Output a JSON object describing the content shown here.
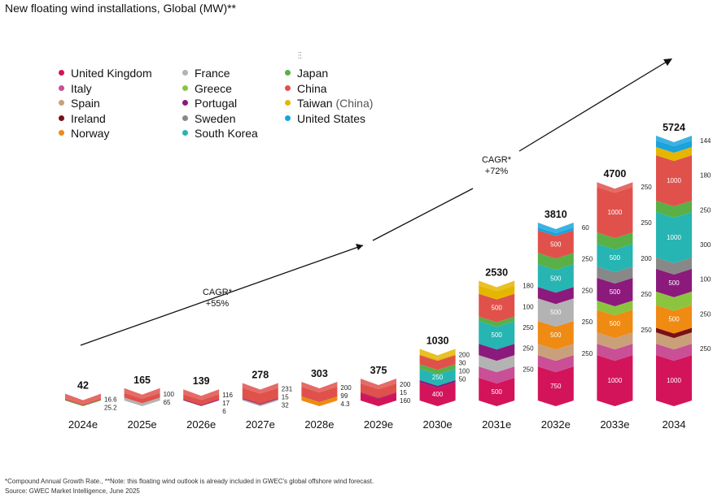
{
  "title": "New floating wind installations, Global  (MW)**",
  "legend": [
    {
      "label": "United Kingdom",
      "color": "#d3145a"
    },
    {
      "label": "Italy",
      "color": "#c94f96"
    },
    {
      "label": "Spain",
      "color": "#c9a07a"
    },
    {
      "label": "Ireland",
      "color": "#7a1016"
    },
    {
      "label": "Norway",
      "color": "#ef8a13"
    },
    {
      "label": "France",
      "color": "#b3b3b3"
    },
    {
      "label": "Greece",
      "color": "#8bc53f"
    },
    {
      "label": "Portugal",
      "color": "#8b1a7c"
    },
    {
      "label": "Sweden",
      "color": "#888888"
    },
    {
      "label": "South Korea",
      "color": "#26b5b2"
    },
    {
      "label": "Japan",
      "color": "#58b046"
    },
    {
      "label": "China",
      "color": "#e0514c"
    },
    {
      "label": "Taiwan",
      "label_suffix": "(China)",
      "color": "#e5b600"
    },
    {
      "label": "United States",
      "color": "#1aa3dd"
    }
  ],
  "cagr_labels": [
    {
      "line1": "CAGR*",
      "line2": "+55%"
    },
    {
      "line1": "CAGR*",
      "line2": "+72%"
    }
  ],
  "chart_data": {
    "type": "bar",
    "stacked": true,
    "categories": [
      "2024e",
      "2025e",
      "2026e",
      "2027e",
      "2028e",
      "2029e",
      "2030e",
      "2031e",
      "2032e",
      "2033e",
      "2034"
    ],
    "totals": [
      42,
      165,
      139,
      278,
      303,
      375,
      1030,
      2530,
      3810,
      4700,
      5724
    ],
    "ylim": [
      0,
      5724
    ],
    "series": [
      {
        "name": "United Kingdom",
        "values": [
          0,
          0,
          0,
          0,
          0,
          160,
          400,
          500,
          750,
          1000,
          1000
        ]
      },
      {
        "name": "Italy",
        "values": [
          0,
          0,
          0,
          0,
          0,
          0,
          0,
          250,
          250,
          250,
          250
        ]
      },
      {
        "name": "Spain",
        "values": [
          0,
          0,
          0,
          0,
          0,
          0,
          0,
          0,
          250,
          250,
          250
        ]
      },
      {
        "name": "Ireland",
        "values": [
          0,
          0,
          0,
          0,
          0,
          0,
          0,
          0,
          0,
          0,
          100
        ]
      },
      {
        "name": "Norway",
        "values": [
          0,
          0,
          0,
          0,
          99,
          0,
          0,
          0,
          500,
          500,
          500
        ]
      },
      {
        "name": "France",
        "values": [
          0,
          65,
          6,
          32,
          0,
          0,
          0,
          250,
          500,
          0,
          0
        ]
      },
      {
        "name": "Greece",
        "values": [
          0,
          0,
          0,
          0,
          0,
          0,
          0,
          0,
          0,
          200,
          300
        ]
      },
      {
        "name": "Portugal",
        "values": [
          0,
          0,
          17,
          15,
          4.3,
          15,
          50,
          250,
          250,
          500,
          500
        ]
      },
      {
        "name": "Sweden",
        "values": [
          0,
          0,
          0,
          0,
          0,
          0,
          0,
          0,
          0,
          250,
          250
        ]
      },
      {
        "name": "South Korea",
        "values": [
          0,
          0,
          0,
          0,
          0,
          0,
          250,
          500,
          500,
          500,
          1000
        ]
      },
      {
        "name": "Japan",
        "values": [
          16.6,
          0,
          0,
          0,
          0,
          0,
          100,
          100,
          250,
          250,
          250
        ]
      },
      {
        "name": "China",
        "values": [
          25.2,
          100,
          116,
          231,
          200,
          200,
          200,
          500,
          500,
          1000,
          1000
        ]
      },
      {
        "name": "Taiwan (China)",
        "values": [
          0,
          0,
          0,
          0,
          0,
          0,
          30,
          180,
          0,
          0,
          180
        ]
      },
      {
        "name": "United States",
        "values": [
          0,
          0,
          0,
          0,
          0,
          0,
          0,
          0,
          60,
          0,
          144
        ]
      }
    ],
    "side_labels": [
      [
        "16.6",
        "25.2"
      ],
      [
        "100",
        "65"
      ],
      [
        "116",
        "17",
        "6"
      ],
      [
        "231",
        "15",
        "32"
      ],
      [
        "200",
        "99",
        "4.3"
      ],
      [
        "200",
        "15",
        "160"
      ],
      [
        "200",
        "30",
        "100",
        "50"
      ],
      [
        "180",
        "100",
        "250",
        "250",
        "250"
      ],
      [
        "60",
        "250",
        "250",
        "250",
        "250"
      ],
      [
        "250",
        "250",
        "200",
        "250",
        "250"
      ],
      [
        "144",
        "180",
        "250",
        "300",
        "100",
        "250",
        "250"
      ]
    ],
    "inner_labels": [
      [],
      [],
      [],
      [],
      [],
      [],
      [
        {
          "series": "South Korea",
          "text": "250"
        },
        {
          "series": "United Kingdom",
          "text": "400"
        }
      ],
      [
        {
          "series": "China",
          "text": "500"
        },
        {
          "series": "South Korea",
          "text": "500"
        },
        {
          "series": "United Kingdom",
          "text": "500"
        }
      ],
      [
        {
          "series": "China",
          "text": "500"
        },
        {
          "series": "South Korea",
          "text": "500"
        },
        {
          "series": "France",
          "text": "500"
        },
        {
          "series": "Norway",
          "text": "500"
        },
        {
          "series": "United Kingdom",
          "text": "750"
        }
      ],
      [
        {
          "series": "China",
          "text": "1000"
        },
        {
          "series": "South Korea",
          "text": "500"
        },
        {
          "series": "Portugal",
          "text": "500"
        },
        {
          "series": "Norway",
          "text": "500"
        },
        {
          "series": "United Kingdom",
          "text": "1000"
        }
      ],
      [
        {
          "series": "China",
          "text": "1000"
        },
        {
          "series": "South Korea",
          "text": "1000"
        },
        {
          "series": "Portugal",
          "text": "500"
        },
        {
          "series": "Norway",
          "text": "500"
        },
        {
          "series": "United Kingdom",
          "text": "1000"
        }
      ]
    ]
  },
  "footnote": "*Compound Annual Growth Rate., **Note: this floating wind outlook is already included in GWEC's global offshore wind forecast.",
  "source": "Source: GWEC Market Intelligence, June 2025"
}
